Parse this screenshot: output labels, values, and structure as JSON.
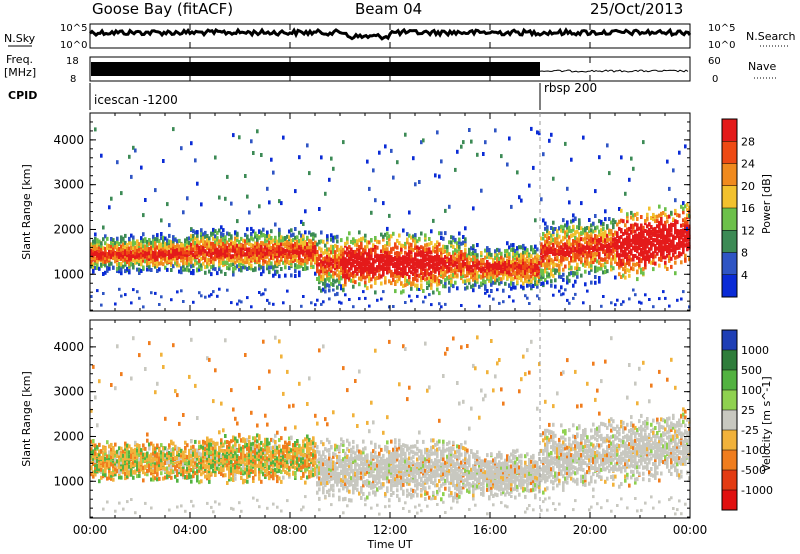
{
  "header": {
    "station": "Goose Bay (fitACF)",
    "beam": "Beam 04",
    "date": "25/Oct/2013"
  },
  "noise_panel": {
    "left_label": "N.Sky",
    "right_label": "N.Search",
    "left_ticks": [
      "10^5",
      "10^0"
    ],
    "right_ticks": [
      "10^5",
      "10^0"
    ]
  },
  "freq_panel": {
    "left_label_1": "Freq.",
    "left_label_2": "[MHz]",
    "right_label": "Nave",
    "left_ticks": [
      "18",
      "8"
    ],
    "right_ticks": [
      "60",
      "0"
    ]
  },
  "cpid_panel": {
    "label": "CPID",
    "segments": [
      {
        "name": "icescan -1200",
        "start_hour": 0
      },
      {
        "name": "rbsp 200",
        "start_hour": 18
      }
    ]
  },
  "time_axis": {
    "label": "Time UT",
    "ticks": [
      "00:00",
      "04:00",
      "08:00",
      "12:00",
      "16:00",
      "20:00",
      "00:00"
    ],
    "range_hours": [
      0,
      24
    ]
  },
  "range_axis": {
    "label": "Slant Range [km]",
    "ticks": [
      "1000",
      "2000",
      "3000",
      "4000"
    ],
    "range_km": [
      180,
      4600
    ]
  },
  "colorbars": {
    "power": {
      "title": "Power [dB]",
      "labels": [
        "4",
        "8",
        "12",
        "16",
        "20",
        "24",
        "28"
      ],
      "colors": [
        "#0a2bd6",
        "#2f55c4",
        "#3c8a55",
        "#6cc04a",
        "#f2c12e",
        "#f08a1e",
        "#ee4a14",
        "#e41a1a"
      ]
    },
    "velocity": {
      "title": "Velocity [m s^-1]",
      "labels": [
        "1000",
        "500",
        "100",
        "25",
        "-25",
        "-100",
        "-500",
        "-1000"
      ],
      "colors": [
        "#1f3fb5",
        "#2f7d3b",
        "#52b240",
        "#8fd14f",
        "#c8c8c0",
        "#f1b23b",
        "#f07d1e",
        "#e33b12",
        "#e01010"
      ]
    }
  },
  "chart_data": [
    {
      "type": "heatmap",
      "title": "Power",
      "xlabel": "Time UT",
      "ylabel": "Slant Range [km]",
      "xlim": [
        0,
        24
      ],
      "ylim": [
        180,
        4600
      ],
      "colorbar_label": "Power [dB]",
      "colorbar_range": [
        0,
        30
      ],
      "features": [
        {
          "x": [
            0,
            4
          ],
          "y": [
            1100,
            1800
          ],
          "value": 20
        },
        {
          "x": [
            4,
            9
          ],
          "y": [
            1200,
            1900
          ],
          "value": 16
        },
        {
          "x": [
            9,
            15
          ],
          "y": [
            900,
            1700
          ],
          "value": 24
        },
        {
          "x": [
            15,
            18
          ],
          "y": [
            900,
            1500
          ],
          "value": 16
        },
        {
          "x": [
            18,
            24
          ],
          "y": [
            900,
            2400
          ],
          "value": 20
        },
        {
          "x": [
            22,
            24
          ],
          "y": [
            800,
            1400
          ],
          "value": 28
        }
      ]
    },
    {
      "type": "heatmap",
      "title": "Velocity",
      "xlabel": "Time UT",
      "ylabel": "Slant Range [km]",
      "xlim": [
        0,
        24
      ],
      "ylim": [
        180,
        4600
      ],
      "colorbar_label": "Velocity [m s^-1]",
      "colorbar_range": [
        -1000,
        1000
      ],
      "features": [
        {
          "x": [
            0,
            4
          ],
          "y": [
            1200,
            1800
          ],
          "value": -100
        },
        {
          "x": [
            4,
            9
          ],
          "y": [
            1300,
            2000
          ],
          "value": -25
        },
        {
          "x": [
            9,
            15
          ],
          "y": [
            800,
            1700
          ],
          "value": 0
        },
        {
          "x": [
            15,
            24
          ],
          "y": [
            700,
            1500
          ],
          "value": 0
        },
        {
          "x": [
            20,
            24
          ],
          "y": [
            1800,
            2400
          ],
          "value": 100
        }
      ]
    }
  ]
}
